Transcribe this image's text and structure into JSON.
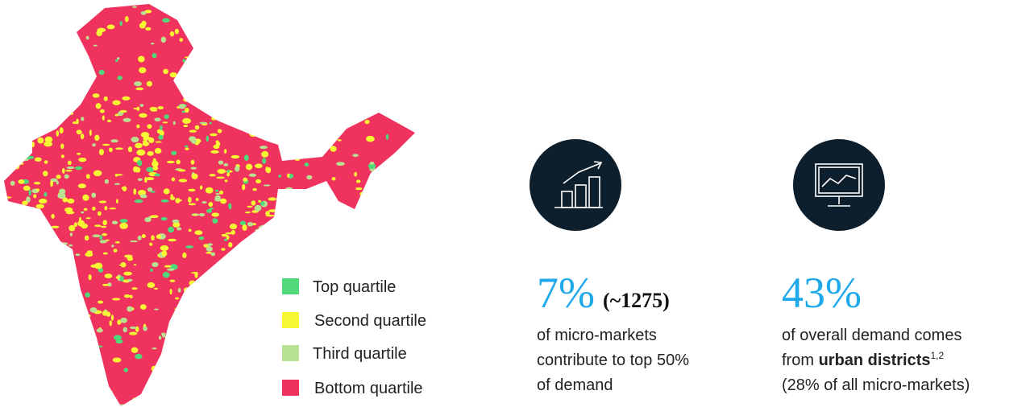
{
  "legend": [
    {
      "label": "Top quartile",
      "color": "#4fd97a"
    },
    {
      "label": "Second quartile",
      "color": "#f7f733"
    },
    {
      "label": "Third quartile",
      "color": "#b8e291"
    },
    {
      "label": "Bottom quartile",
      "color": "#f0335e"
    }
  ],
  "stats": [
    {
      "value": "7%",
      "note": "(~1275)",
      "lines": [
        "of micro-markets",
        "contribute to top 50%",
        "of demand"
      ]
    },
    {
      "value": "43%",
      "lines": [
        "of overall demand comes",
        {
          "text": "from",
          "bold": "urban districts",
          "sup": "1,2"
        },
        "(28% of all micro-markets)"
      ]
    }
  ]
}
